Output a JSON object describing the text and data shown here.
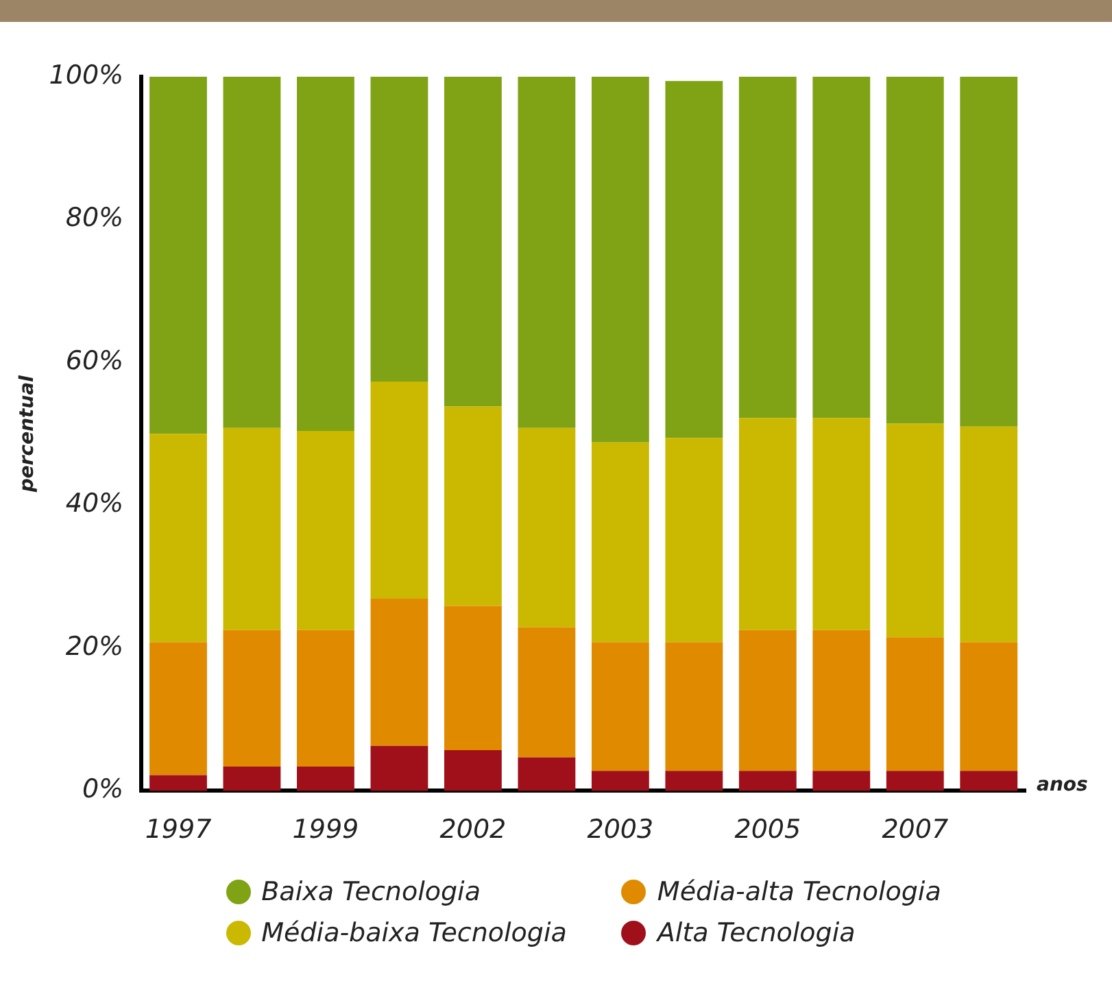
{
  "chart_data": {
    "type": "bar",
    "stacked": true,
    "xlabel": "anos",
    "ylabel": "percentual",
    "categories": [
      "1997",
      null,
      "1999",
      null,
      "2002",
      null,
      "2003",
      null,
      "2005",
      null,
      "2007",
      null
    ],
    "series": [
      {
        "name": "Alta Tecnologia",
        "color": "#a0101a",
        "values": [
          2.2,
          3.4,
          3.4,
          6.3,
          5.7,
          4.7,
          2.8,
          2.8,
          2.8,
          2.8,
          2.8,
          2.8
        ]
      },
      {
        "name": "Média-alta Tecnologia",
        "color": "#e08a00",
        "values": [
          18.6,
          19.1,
          19.1,
          20.6,
          20.2,
          18.2,
          18,
          18,
          19.7,
          19.7,
          18.7,
          18
        ]
      },
      {
        "name": "Média-baixa Tecnologia",
        "color": "#cbb800",
        "values": [
          29.2,
          28.3,
          27.9,
          30.4,
          27.9,
          27.9,
          28,
          28.6,
          29.7,
          29.7,
          29.9,
          30.2
        ]
      },
      {
        "name": "Baixa Tecnologia",
        "color": "#80a315",
        "values": [
          50,
          49.2,
          49.6,
          42.7,
          46.2,
          49.2,
          51.2,
          50,
          47.8,
          47.8,
          48.6,
          49
        ]
      }
    ],
    "ylim": [
      0,
      100
    ],
    "yticks": [
      {
        "value": 0,
        "label": "0%"
      },
      {
        "value": 20,
        "label": "20%"
      },
      {
        "value": 40,
        "label": "40%"
      },
      {
        "value": 60,
        "label": "60%"
      },
      {
        "value": 80,
        "label": "80%"
      },
      {
        "value": 100,
        "label": "100%"
      }
    ],
    "grid": false,
    "legend": "bottom"
  }
}
